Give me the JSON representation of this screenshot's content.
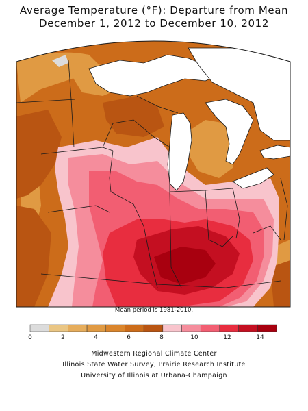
{
  "title": {
    "line1": "Average Temperature (°F): Departure from Mean",
    "line2": "December 1, 2012 to December 10, 2012"
  },
  "note": "Mean period is 1981-2010.",
  "legend": {
    "colors": [
      "#dcdcdc",
      "#eac684",
      "#e6ad5c",
      "#e09a43",
      "#da852c",
      "#cc6c1a",
      "#b95512",
      "#f8c4cc",
      "#f58d9c",
      "#f25e72",
      "#e82d3f",
      "#c40f21",
      "#a8000f"
    ],
    "tick_labels": [
      "0",
      "2",
      "4",
      "6",
      "8",
      "10",
      "12",
      "14"
    ]
  },
  "credits": [
    "Midwestern Regional Climate Center",
    "Illinois State Water Survey, Prairie Research Institute",
    "University of Illinois at Urbana-Champaign"
  ],
  "map_colors": {
    "lake": "#ffffff",
    "border": "#1a1a1a",
    "band_6_8": "#cc6c1a",
    "band_4_6": "#e09a43",
    "band_8_10": "#b95512",
    "band_10_11": "#f8c4cc",
    "band_11_12": "#f58d9c",
    "band_12_13": "#f25e72",
    "band_13_14": "#e82d3f",
    "band_14_15": "#c40f21",
    "band_15_plus": "#a8000f",
    "band_0_2": "#dcdcdc"
  }
}
